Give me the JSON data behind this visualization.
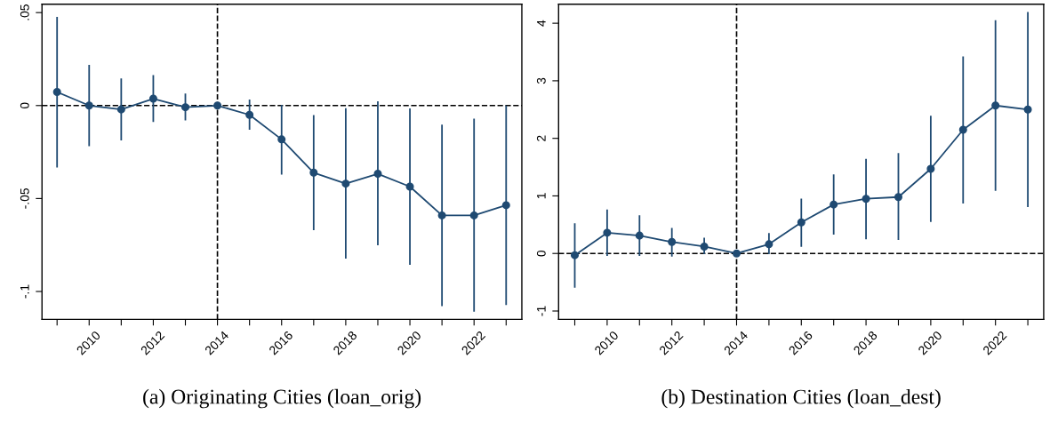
{
  "chart_data": [
    {
      "type": "line",
      "title": "(a) Originating Cities (loan_orig)",
      "x": [
        2009,
        2010,
        2011,
        2012,
        2013,
        2014,
        2015,
        2016,
        2017,
        2018,
        2019,
        2020,
        2021,
        2022,
        2023
      ],
      "series": [
        {
          "color": "#1f4a72",
          "values": [
            0.0073,
            0,
            -0.0021,
            0.0037,
            -0.0009,
            0,
            -0.005,
            -0.0182,
            -0.0361,
            -0.042,
            -0.0367,
            -0.0436,
            -0.0591,
            -0.0591,
            -0.0536
          ],
          "errors": [
            [
              -0.0329,
              0.0473
            ],
            [
              -0.0214,
              0.0214
            ],
            [
              -0.0183,
              0.0142
            ],
            [
              -0.0084,
              0.016
            ],
            [
              -0.0075,
              0.006
            ],
            null,
            [
              -0.0126,
              0.0028
            ],
            [
              -0.0367,
              0
            ],
            [
              -0.0666,
              -0.0055
            ],
            [
              -0.0819,
              -0.0018
            ],
            [
              -0.0747,
              0.0018
            ],
            [
              -0.0852,
              -0.002
            ],
            [
              -0.1075,
              -0.0107
            ],
            [
              -0.1105,
              -0.0075
            ],
            [
              -0.1068,
              -0.0004
            ]
          ]
        }
      ],
      "xlim": [
        2008.53,
        2023.49
      ],
      "ylim": [
        -0.115,
        0.0545
      ],
      "xticks": [
        {
          "value": 2009,
          "label": null
        },
        2010,
        {
          "value": 2011,
          "label": null
        },
        2012,
        {
          "value": 2013,
          "label": null
        },
        2014,
        {
          "value": 2015,
          "label": null
        },
        2016,
        {
          "value": 2017,
          "label": null
        },
        2018,
        {
          "value": 2019,
          "label": null
        },
        2020,
        {
          "value": 2021,
          "label": null
        },
        2022,
        {
          "value": 2023,
          "label": null
        }
      ],
      "yticks": [
        {
          "value": -0.1,
          "label": "-.1"
        },
        {
          "value": -0.05,
          "label": "-.05"
        },
        0,
        {
          "value": 0.05,
          "label": ".05"
        }
      ],
      "ref_lines": [
        {
          "axis": "x",
          "value": 2014,
          "line_style": "dashed",
          "color": "#000000"
        },
        {
          "axis": "y",
          "value": 0,
          "line_style": "dashed",
          "color": "#000000"
        }
      ],
      "marker": "circle",
      "line_style": "solid",
      "grid": false,
      "legend": false
    },
    {
      "type": "line",
      "title": "(b) Destination Cities (loan_dest)",
      "x": [
        2009,
        2010,
        2011,
        2012,
        2013,
        2014,
        2015,
        2016,
        2017,
        2018,
        2019,
        2020,
        2021,
        2022,
        2023
      ],
      "series": [
        {
          "color": "#1f4a72",
          "values": [
            -0.03,
            0.36,
            0.31,
            0.2,
            0.12,
            0,
            0.16,
            0.54,
            0.85,
            0.95,
            0.98,
            1.47,
            2.15,
            2.57,
            2.5
          ],
          "errors": [
            [
              -0.58,
              0.51
            ],
            [
              -0.03,
              0.75
            ],
            [
              -0.03,
              0.65
            ],
            [
              -0.04,
              0.43
            ],
            [
              0,
              0.26
            ],
            null,
            [
              0,
              0.34
            ],
            [
              0.13,
              0.94
            ],
            [
              0.34,
              1.36
            ],
            [
              0.26,
              1.63
            ],
            [
              0.25,
              1.73
            ],
            [
              0.56,
              2.38
            ],
            [
              0.88,
              3.41
            ],
            [
              1.1,
              4.04
            ],
            [
              0.82,
              4.18
            ]
          ]
        }
      ],
      "xlim": [
        2008.5,
        2023.49
      ],
      "ylim": [
        -1.145,
        4.33
      ],
      "xticks": [
        {
          "value": 2009,
          "label": null
        },
        2010,
        {
          "value": 2011,
          "label": null
        },
        2012,
        {
          "value": 2013,
          "label": null
        },
        2014,
        {
          "value": 2015,
          "label": null
        },
        2016,
        {
          "value": 2017,
          "label": null
        },
        2018,
        {
          "value": 2019,
          "label": null
        },
        2020,
        {
          "value": 2021,
          "label": null
        },
        2022,
        {
          "value": 2023,
          "label": null
        }
      ],
      "yticks": [
        -1,
        0,
        1,
        2,
        3,
        4
      ],
      "ref_lines": [
        {
          "axis": "x",
          "value": 2014,
          "line_style": "dashed",
          "color": "#000000"
        },
        {
          "axis": "y",
          "value": 0,
          "line_style": "dashed",
          "color": "#000000"
        }
      ],
      "marker": "circle",
      "line_style": "solid",
      "grid": false,
      "legend": false
    }
  ]
}
